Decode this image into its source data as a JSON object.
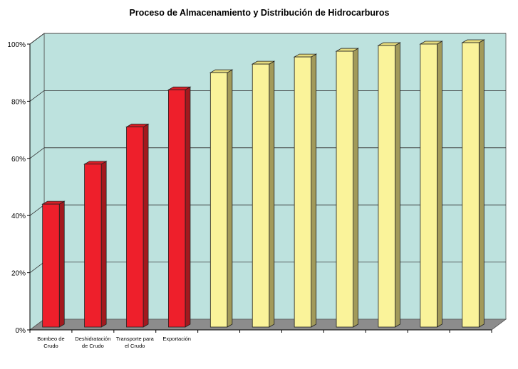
{
  "chart_data": {
    "type": "bar",
    "title": "Proceso de Almacenamiento y Distribución de Hidrocarburos",
    "xlabel": "",
    "ylabel": "",
    "categories": [
      [
        "Bombeo de",
        "Crudo"
      ],
      [
        "Deshidratación",
        "de Crudo"
      ],
      [
        "Transporte para",
        "el Crudo"
      ],
      [
        "Exportación"
      ],
      [
        ""
      ],
      [
        ""
      ],
      [
        ""
      ],
      [
        ""
      ],
      [
        ""
      ],
      [
        ""
      ],
      [
        ""
      ]
    ],
    "values": [
      44,
      58,
      71,
      84,
      90,
      93,
      95.5,
      97.5,
      99.5,
      100,
      100.5
    ],
    "ylim": [
      0,
      100
    ],
    "yticks": [
      0,
      20,
      40,
      60,
      80,
      100
    ],
    "ytick_labels": [
      "0%",
      "20%",
      "40%",
      "60%",
      "80%",
      "100%"
    ],
    "grid": true,
    "legend": "none",
    "colors": {
      "wall": "#BDE2DE",
      "floor": "#8C8C8C",
      "red_front": "#EE1F2B",
      "red_side": "#A3191E",
      "red_top": "#D81E26",
      "yellow_front": "#FAF39A",
      "yellow_side": "#A29A5A",
      "yellow_top": "#E6DC7E"
    },
    "bar_color_groups": [
      "red",
      "red",
      "red",
      "red",
      "yellow",
      "yellow",
      "yellow",
      "yellow",
      "yellow",
      "yellow",
      "yellow"
    ]
  }
}
